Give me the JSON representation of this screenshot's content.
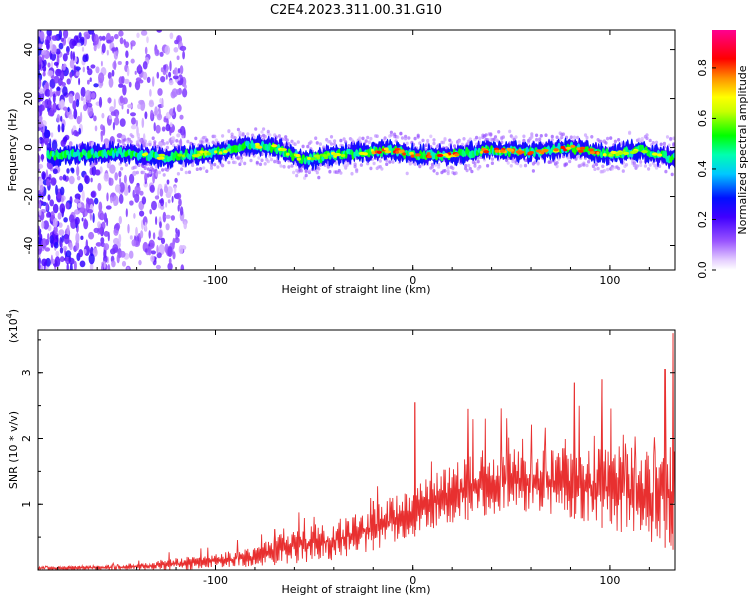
{
  "title": "C2E4.2023.311.00.31.G10",
  "chart_data": [
    {
      "type": "heatmap",
      "xlabel": "Height of straight line (km)",
      "ylabel": "Frequency (Hz)",
      "xlim": [
        -190,
        133
      ],
      "ylim": [
        -50,
        48
      ],
      "x_ticks": [
        -100,
        0,
        100
      ],
      "y_ticks": [
        -40,
        -20,
        0,
        20,
        40
      ],
      "x_tick_labels": [
        "-100",
        "0",
        "100"
      ],
      "y_tick_labels": [
        "-40",
        "-20",
        "0",
        "20",
        "40"
      ],
      "colorbar": {
        "label": "Normalized spectral amplitude",
        "range": [
          0,
          0.95
        ],
        "ticks": [
          0,
          0.2,
          0.4,
          0.6,
          0.8
        ],
        "tick_labels": [
          "0.0",
          "0.2",
          "0.4",
          "0.6",
          "0.8"
        ],
        "colors": [
          "#ffffff",
          "#d9b8ff",
          "#9a55ff",
          "#5a00ff",
          "#0000ff",
          "#00ffff",
          "#00ff00",
          "#ffff00",
          "#ff8800",
          "#ff0000",
          "#ff0088"
        ]
      },
      "ridge_center_hz": [
        {
          "x": -175,
          "y": -3
        },
        {
          "x": -150,
          "y": -2
        },
        {
          "x": -125,
          "y": -4
        },
        {
          "x": -100,
          "y": -2
        },
        {
          "x": -85,
          "y": 1
        },
        {
          "x": -70,
          "y": 0
        },
        {
          "x": -55,
          "y": -5
        },
        {
          "x": -40,
          "y": -3
        },
        {
          "x": -25,
          "y": -2
        },
        {
          "x": -10,
          "y": -1
        },
        {
          "x": 0,
          "y": -3
        },
        {
          "x": 20,
          "y": -3
        },
        {
          "x": 40,
          "y": -1
        },
        {
          "x": 60,
          "y": -2
        },
        {
          "x": 80,
          "y": 0
        },
        {
          "x": 100,
          "y": -3
        },
        {
          "x": 115,
          "y": -1
        },
        {
          "x": 130,
          "y": -4
        }
      ]
    },
    {
      "type": "line",
      "xlabel": "Height of straight line (km)",
      "ylabel": "SNR (10 * v/v)",
      "y_scale_label": "(x10",
      "y_scale_exponent": "4",
      "xlim": [
        -190,
        133
      ],
      "ylim": [
        0,
        3.65
      ],
      "x_ticks": [
        -100,
        0,
        100
      ],
      "y_ticks": [
        1,
        2,
        3
      ],
      "x_tick_labels": [
        "-100",
        "0",
        "100"
      ],
      "y_tick_labels": [
        "1",
        "2",
        "3"
      ],
      "series_color": "#e83030",
      "envelope": [
        {
          "x": -190,
          "lo": 0.0,
          "hi": 0.05
        },
        {
          "x": -150,
          "lo": 0.0,
          "hi": 0.08
        },
        {
          "x": -120,
          "lo": 0.0,
          "hi": 0.18
        },
        {
          "x": -100,
          "lo": 0.02,
          "hi": 0.25
        },
        {
          "x": -80,
          "lo": 0.05,
          "hi": 0.35
        },
        {
          "x": -60,
          "lo": 0.1,
          "hi": 0.65
        },
        {
          "x": -40,
          "lo": 0.15,
          "hi": 0.75
        },
        {
          "x": -20,
          "lo": 0.3,
          "hi": 0.95
        },
        {
          "x": 0,
          "lo": 0.5,
          "hi": 1.3
        },
        {
          "x": 20,
          "lo": 0.7,
          "hi": 1.6
        },
        {
          "x": 40,
          "lo": 0.85,
          "hi": 1.9
        },
        {
          "x": 60,
          "lo": 0.85,
          "hi": 1.8
        },
        {
          "x": 80,
          "lo": 0.8,
          "hi": 1.9
        },
        {
          "x": 100,
          "lo": 0.6,
          "hi": 1.9
        },
        {
          "x": 120,
          "lo": 0.4,
          "hi": 1.9
        },
        {
          "x": 133,
          "lo": 0.3,
          "hi": 2.0
        }
      ],
      "peaks": [
        {
          "x": -70,
          "y": 0.62
        },
        {
          "x": -20,
          "y": 1.05
        },
        {
          "x": 1,
          "y": 2.55
        },
        {
          "x": 28,
          "y": 2.45
        },
        {
          "x": 82,
          "y": 2.85
        },
        {
          "x": 96,
          "y": 2.9
        },
        {
          "x": 128,
          "y": 3.05
        },
        {
          "x": 132,
          "y": 3.6
        }
      ]
    }
  ]
}
